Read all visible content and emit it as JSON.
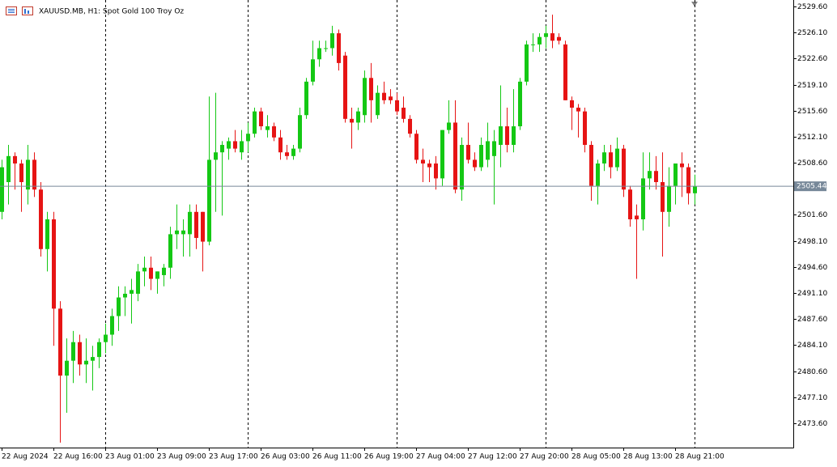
{
  "chart_data": {
    "type": "candlestick",
    "title": "XAUUSD.MB, H1:  Spot Gold 100 Troy Oz",
    "categories": [
      "22 Aug 2024",
      null,
      null,
      null,
      null,
      null,
      null,
      null,
      "22 Aug 16:00",
      null,
      null,
      null,
      null,
      null,
      null,
      null,
      "23 Aug 01:00",
      null,
      null,
      null,
      null,
      null,
      null,
      null,
      "23 Aug 09:00",
      null,
      null,
      null,
      null,
      null,
      null,
      null,
      "23 Aug 17:00",
      null,
      null,
      null,
      null,
      null,
      null,
      null,
      "26 Aug 03:00",
      null,
      null,
      null,
      null,
      null,
      null,
      null,
      "26 Aug 11:00",
      null,
      null,
      null,
      null,
      null,
      null,
      null,
      "26 Aug 19:00",
      null,
      null,
      null,
      null,
      null,
      null,
      null,
      "27 Aug 04:00",
      null,
      null,
      null,
      null,
      null,
      null,
      null,
      "27 Aug 12:00",
      null,
      null,
      null,
      null,
      null,
      null,
      null,
      "27 Aug 20:00",
      null,
      null,
      null,
      null,
      null,
      null,
      null,
      "28 Aug 05:00",
      null,
      null,
      null,
      null,
      null,
      null,
      null,
      "28 Aug 13:00",
      null,
      null,
      null,
      null,
      null,
      null,
      null,
      "28 Aug 21:00",
      null,
      null,
      null
    ],
    "open": [
      2502,
      2506,
      2509.5,
      2508.5,
      2505,
      2509,
      2505,
      2497,
      2501,
      2489,
      2480,
      2482,
      2484.5,
      2481.5,
      2482,
      2482.5,
      2484.5,
      2485.5,
      2488,
      2490.5,
      2491,
      2491,
      2494,
      2494.5,
      2493,
      2493.5,
      2494.5,
      2499,
      2499,
      2499,
      2502,
      2502,
      2498,
      2509,
      2510,
      2510.5,
      2511.5,
      2510,
      2511.5,
      2512.5,
      2515.5,
      2513,
      2513.5,
      2512,
      2510,
      2509.5,
      2510.5,
      2515,
      2519.5,
      2522.5,
      2524,
      2524,
      2526,
      2523,
      2514.5,
      2514,
      2515,
      2520,
      2515,
      2518,
      2517.5,
      2517,
      2516,
      2514.5,
      2512.5,
      2509,
      2508.5,
      2508.5,
      2506.5,
      2513,
      2514,
      2505,
      2511,
      2509,
      2508,
      2509,
      2509.5,
      2511,
      2513.5,
      2511,
      2513.5,
      2519.5,
      2524.5,
      2524.5,
      2525.5,
      2526,
      2525.5,
      2524.5,
      2517,
      2516,
      2515.5,
      2511,
      2505.5,
      2508.5,
      2510,
      2508,
      2510.5,
      2505,
      2501.5,
      2501,
      2506.5,
      2507.5,
      2506,
      2502,
      2505.5,
      2508.5,
      2508,
      2504.5
    ],
    "high": [
      2509,
      2511,
      2510,
      2509,
      2511,
      2510,
      2506,
      2502,
      2502,
      2490,
      2485,
      2486,
      2485.5,
      2485,
      2484,
      2485,
      2487,
      2489,
      2492,
      2492,
      2493,
      2495,
      2496,
      2496,
      2494,
      2495,
      2500,
      2503,
      2501,
      2503,
      2503,
      2502,
      2517.5,
      2518,
      2511.5,
      2512,
      2513,
      2513,
      2514,
      2516,
      2516,
      2515,
      2514,
      2513,
      2511,
      2511,
      2516,
      2520,
      2525,
      2525,
      2525,
      2527,
      2526.5,
      2523.5,
      2516,
      2516,
      2521,
      2522,
      2519,
      2519.5,
      2518.5,
      2518,
      2517.5,
      2515,
      2513,
      2510.5,
      2509,
      2509.5,
      2513,
      2517,
      2517,
      2512,
      2514,
      2510,
      2512,
      2514,
      2513,
      2519,
      2516,
      2518.5,
      2520,
      2525,
      2526,
      2526,
      2527,
      2528.5,
      2526,
      2525,
      2517.5,
      2516.5,
      2516,
      2511.5,
      2509,
      2511,
      2511,
      2512,
      2511,
      2505.5,
      2503,
      2510,
      2510,
      2509.5,
      2510,
      2508,
      2508.5,
      2510,
      2508.5,
      2507
    ],
    "low": [
      2501,
      2503,
      2505,
      2502,
      2503,
      2504,
      2496,
      2494,
      2484,
      2471,
      2475,
      2479,
      2480,
      2479,
      2478,
      2481,
      2483,
      2484,
      2486,
      2488,
      2487,
      2490,
      2492,
      2491.5,
      2491,
      2492,
      2493,
      2497,
      2496,
      2496,
      2497,
      2494,
      2497.5,
      2502,
      2501.5,
      2509,
      2510,
      2509,
      2510,
      2512,
      2513,
      2512,
      2511.5,
      2509,
      2509,
      2509,
      2510,
      2514.5,
      2519,
      2521.5,
      2523.5,
      2523,
      2521,
      2514,
      2510.5,
      2513,
      2514,
      2514,
      2514.5,
      2516.5,
      2516.5,
      2515,
      2514,
      2512,
      2508.5,
      2506,
      2506,
      2505,
      2505.5,
      2512.5,
      2504.5,
      2503.5,
      2508.5,
      2507.5,
      2507.5,
      2508,
      2503,
      2508,
      2510,
      2510,
      2513,
      2519,
      2523.5,
      2523.5,
      2524,
      2524,
      2524.5,
      2517,
      2513,
      2512,
      2510,
      2503.5,
      2503,
      2507.5,
      2506.5,
      2507.5,
      2504,
      2500,
      2493,
      2499.5,
      2505,
      2505,
      2496,
      2500,
      2503,
      2504,
      2503,
      2503
    ],
    "close": [
      2508,
      2509.5,
      2508.5,
      2506,
      2509,
      2505,
      2497,
      2501,
      2489,
      2480,
      2482,
      2484.5,
      2481.5,
      2482,
      2482.5,
      2484.5,
      2485.5,
      2488,
      2490.5,
      2491,
      2491.5,
      2494,
      2494.5,
      2493,
      2494,
      2494.5,
      2499,
      2499.5,
      2499.5,
      2502,
      2498.5,
      2498,
      2509,
      2510,
      2511,
      2511.5,
      2510.5,
      2511.5,
      2512.5,
      2515.5,
      2513.5,
      2513.5,
      2512,
      2510,
      2509.5,
      2510.5,
      2515,
      2519.5,
      2522.5,
      2524,
      2524,
      2526,
      2522,
      2514.5,
      2514,
      2515.5,
      2520,
      2517,
      2518,
      2517,
      2517,
      2515.5,
      2514.5,
      2512.5,
      2509,
      2508.5,
      2508,
      2506.5,
      2513,
      2514,
      2505,
      2511,
      2509,
      2508,
      2511,
      2511.5,
      2511.5,
      2513.5,
      2511,
      2513.5,
      2519.5,
      2524.5,
      2524.5,
      2525.5,
      2526,
      2525,
      2525,
      2517,
      2516,
      2515.5,
      2511,
      2505.5,
      2508.5,
      2510,
      2508,
      2510.5,
      2505,
      2501,
      2501,
      2506.5,
      2507.5,
      2506,
      2502,
      2505.5,
      2508.5,
      2508,
      2504.5,
      2505.44
    ],
    "up_color": "#14c814",
    "down_color": "#e61414",
    "ylim": [
      2470.33,
      2530.47
    ],
    "yticks": [
      {
        "value": 2529.6,
        "label": "2529.60"
      },
      {
        "value": 2526.1,
        "label": "2526.10"
      },
      {
        "value": 2522.6,
        "label": "2522.60"
      },
      {
        "value": 2519.1,
        "label": "2519.10"
      },
      {
        "value": 2515.6,
        "label": "2515.60"
      },
      {
        "value": 2512.1,
        "label": "2512.10"
      },
      {
        "value": 2508.6,
        "label": "2508.60"
      },
      {
        "value": 2501.6,
        "label": "2501.60"
      },
      {
        "value": 2498.1,
        "label": "2498.10"
      },
      {
        "value": 2494.6,
        "label": "2494.60"
      },
      {
        "value": 2491.1,
        "label": "2491.10"
      },
      {
        "value": 2487.6,
        "label": "2487.60"
      },
      {
        "value": 2484.1,
        "label": "2484.10"
      },
      {
        "value": 2480.6,
        "label": "2480.60"
      },
      {
        "value": 2477.1,
        "label": "2477.10"
      },
      {
        "value": 2473.6,
        "label": "2473.60"
      }
    ],
    "last_price": 2505.44
  }
}
